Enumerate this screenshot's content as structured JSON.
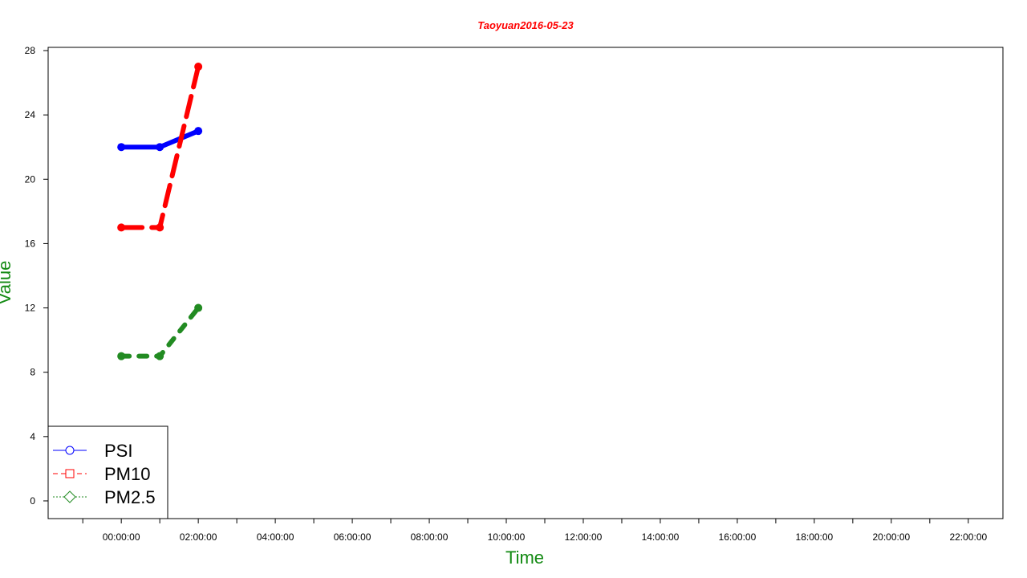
{
  "chart_data": {
    "type": "line",
    "title": "Taoyuan2016-05-23",
    "xlabel": "Time",
    "ylabel": "Value",
    "x_tick_labels": [
      "00:00:00",
      "02:00:00",
      "04:00:00",
      "06:00:00",
      "08:00:00",
      "10:00:00",
      "12:00:00",
      "14:00:00",
      "16:00:00",
      "18:00:00",
      "20:00:00",
      "22:00:00"
    ],
    "y_ticks": [
      0,
      4,
      8,
      12,
      16,
      20,
      24,
      28
    ],
    "xlim_hours": [
      -1.9,
      22.9
    ],
    "ylim": [
      -1.1,
      28.2
    ],
    "grid": false,
    "legend_position": "bottom-left",
    "series": [
      {
        "name": "PSI",
        "color": "#0000ff",
        "line_style": "solid",
        "marker": "circle",
        "x_hours": [
          0,
          1,
          2
        ],
        "values": [
          22,
          22,
          23
        ]
      },
      {
        "name": "PM10",
        "color": "#ff0000",
        "line_style": "dashed",
        "marker": "square",
        "x_hours": [
          0,
          1,
          2
        ],
        "values": [
          17,
          17,
          27
        ]
      },
      {
        "name": "PM2.5",
        "color": "#228b22",
        "line_style": "dotted",
        "marker": "diamond",
        "x_hours": [
          0,
          1,
          2
        ],
        "values": [
          9,
          9,
          12
        ]
      }
    ]
  }
}
